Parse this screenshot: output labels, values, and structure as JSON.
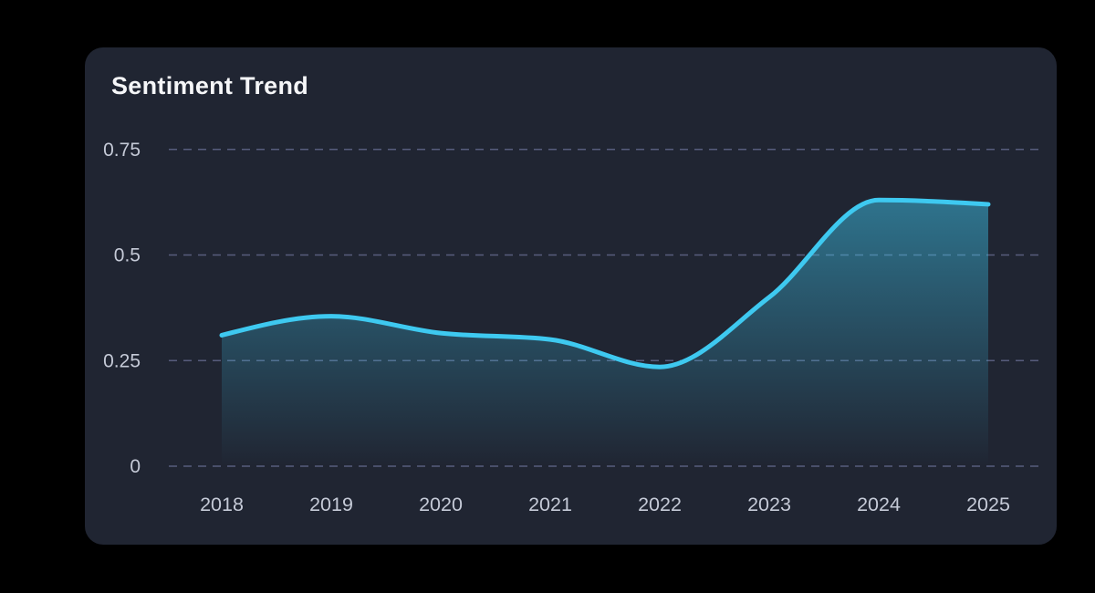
{
  "page": {
    "background": "#000000"
  },
  "card": {
    "background": "#202532",
    "corner_radius": 20
  },
  "chart_data": {
    "type": "area",
    "title": "Sentiment Trend",
    "x": [
      "2018",
      "2019",
      "2020",
      "2021",
      "2022",
      "2023",
      "2024",
      "2025"
    ],
    "series": [
      {
        "name": "Sentiment",
        "values": [
          0.31,
          0.355,
          0.315,
          0.3,
          0.235,
          0.4,
          0.63,
          0.62
        ]
      }
    ],
    "xlabel": "",
    "ylabel": "",
    "ylim": [
      0,
      0.75
    ],
    "yticks": [
      0,
      0.25,
      0.5,
      0.75
    ],
    "ytick_labels": [
      "0",
      "0.25",
      "0.5",
      "0.75"
    ],
    "grid": "horizontal-dashed",
    "legend": "none",
    "colors": {
      "line": "#3ec9f0",
      "fill_top": "rgba(62,201,240,0.48)",
      "fill_bottom": "rgba(62,201,240,0)",
      "grid": "#5d6486",
      "tick_label": "#c5cad7",
      "title": "#f5f6f8"
    }
  }
}
